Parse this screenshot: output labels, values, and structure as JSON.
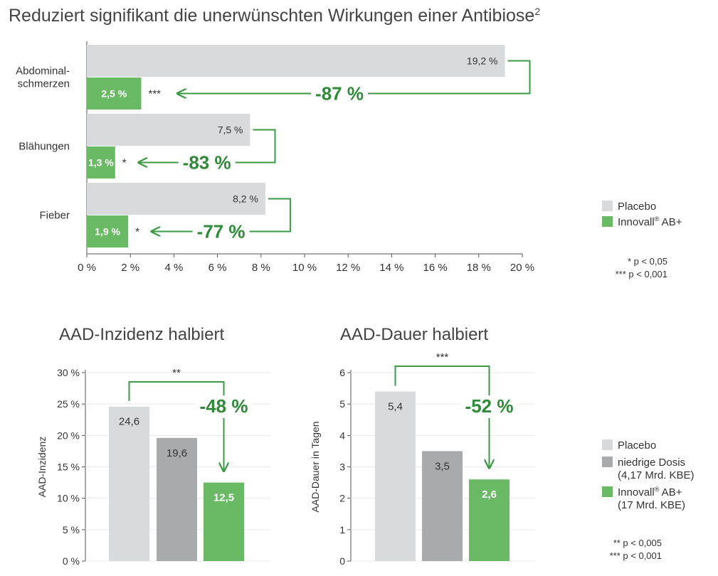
{
  "colors": {
    "placebo": "#d9dadb",
    "low_dose": "#a9aaac",
    "innovall": "#6ab964",
    "accent_text": "#2f8a3a",
    "arrow": "#3c9a45",
    "axis": "#555555",
    "text": "#333333"
  },
  "main_title": {
    "text": "Reduziert signifikant die unerwünschten Wirkungen einer Antibiose",
    "superscript": "2"
  },
  "chart_data": [
    {
      "type": "bar",
      "orientation": "horizontal",
      "categories": [
        {
          "lines": [
            "Abdominal-",
            "schmerzen"
          ]
        },
        {
          "lines": [
            "Blähungen"
          ]
        },
        {
          "lines": [
            "Fieber"
          ]
        }
      ],
      "series": [
        {
          "name": "Placebo",
          "values": [
            19.2,
            7.5,
            8.2
          ],
          "labels": [
            "19,2 %",
            "7,5 %",
            "8,2 %"
          ]
        },
        {
          "name": "Innovall® AB+",
          "values": [
            2.5,
            1.3,
            1.9
          ],
          "labels": [
            "2,5 %",
            "1,3 %",
            "1,9 %"
          ]
        }
      ],
      "significance": [
        "***",
        "*",
        "*"
      ],
      "reductions": [
        "-87 %",
        "-83 %",
        "-77 %"
      ],
      "xlim": [
        0,
        20
      ],
      "xticks": [
        "0 %",
        "2 %",
        "4 %",
        "6 %",
        "8 %",
        "10 %",
        "12 %",
        "14 %",
        "16 %",
        "18 %",
        "20 %"
      ],
      "legend": {
        "position": "right",
        "items": [
          {
            "base": "Placebo",
            "sup": "",
            "tail": "",
            "color": "placebo"
          },
          {
            "base": "Innovall",
            "sup": "®",
            "tail": " AB+",
            "color": "innovall"
          }
        ]
      },
      "footnotes": [
        "* p < 0,05",
        "*** p < 0,001"
      ]
    },
    {
      "type": "bar",
      "title": "AAD-Inzidenz halbiert",
      "ylabel": "AAD-Inzidenz",
      "ylim": [
        0,
        30
      ],
      "yticks": [
        "0 %",
        "5 %",
        "10 %",
        "15 %",
        "20 %",
        "25 %",
        "30 %"
      ],
      "values": [
        24.6,
        19.6,
        12.5
      ],
      "labels": [
        "24,6",
        "19,6",
        "12,5"
      ],
      "significance": "**",
      "reduction": "-48 %"
    },
    {
      "type": "bar",
      "title": "AAD-Dauer halbiert",
      "ylabel": "AAD-Dauer in Tagen",
      "ylim": [
        0,
        6
      ],
      "yticks": [
        "0",
        "1",
        "2",
        "3",
        "4",
        "5",
        "6"
      ],
      "values": [
        5.4,
        3.5,
        2.6
      ],
      "labels": [
        "5,4",
        "3,5",
        "2,6"
      ],
      "significance": "***",
      "reduction": "-52 %"
    }
  ],
  "bottom_legend": {
    "items": [
      {
        "lines": [
          {
            "base": "Placebo",
            "sup": "",
            "tail": ""
          }
        ],
        "color": "placebo"
      },
      {
        "lines": [
          {
            "base": "niedrige Dosis",
            "sup": "",
            "tail": ""
          },
          {
            "base": "(4,17 Mrd. KBE)",
            "sup": "",
            "tail": ""
          }
        ],
        "color": "low_dose"
      },
      {
        "lines": [
          {
            "base": "Innovall",
            "sup": "®",
            "tail": " AB+"
          },
          {
            "base": "(17 Mrd. KBE)",
            "sup": "",
            "tail": ""
          }
        ],
        "color": "innovall"
      }
    ],
    "footnotes": [
      "** p < 0,005",
      "*** p < 0,001"
    ]
  }
}
